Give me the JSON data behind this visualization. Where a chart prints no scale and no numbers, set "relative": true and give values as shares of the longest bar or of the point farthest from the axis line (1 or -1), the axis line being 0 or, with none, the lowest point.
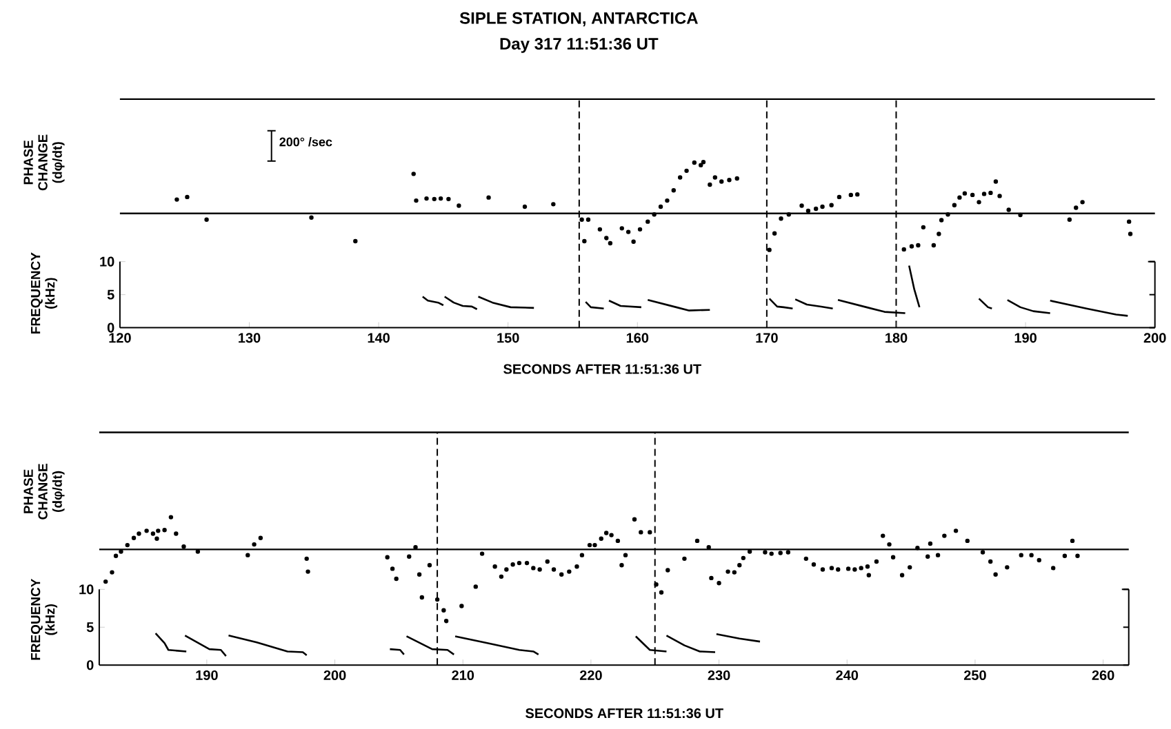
{
  "chart_data": [
    {
      "type": "scatter",
      "title": "SIPLE STATION, ANTARCTICA",
      "subtitle": "Day 317 11:51:36 UT",
      "ylabel": "PHASE CHANGE (dφ/dt)",
      "relative": true,
      "xlim": [
        120,
        200
      ],
      "annotations": [
        "200° /sec"
      ],
      "ref_lines": [
        {
          "axis": "x",
          "value": 155.5,
          "line_style": "dashed"
        },
        {
          "axis": "x",
          "value": 170,
          "line_style": "dashed"
        },
        {
          "axis": "x",
          "value": 180,
          "line_style": "dashed"
        }
      ],
      "series": [
        {
          "color": "#000000",
          "x": [
            124.4,
            125.2,
            126.7,
            134.8,
            138.2,
            142.7,
            142.9,
            143.7,
            144.3,
            144.8,
            145.4,
            146.2,
            148.5,
            151.3,
            153.5,
            155.7,
            155.9,
            156.2,
            157.1,
            157.6,
            157.9,
            158.8,
            159.3,
            159.7,
            160.2,
            160.8,
            161.3,
            161.8,
            162.3,
            162.8,
            163.3,
            163.8,
            164.4,
            164.9,
            165.1,
            165.6,
            166.0,
            166.5,
            167.1,
            167.7,
            170.2,
            170.6,
            171.1,
            171.7,
            172.7,
            173.2,
            173.8,
            174.3,
            175.0,
            175.6,
            176.5,
            177.0,
            180.6,
            181.2,
            181.7,
            182.1,
            182.9,
            183.3,
            183.5,
            184.0,
            184.5,
            184.9,
            185.3,
            185.9,
            186.4,
            186.8,
            187.3,
            187.7,
            188.0,
            188.7,
            189.6,
            193.4,
            193.9,
            194.4,
            198.0,
            198.1
          ],
          "values": [
            0.27,
            0.32,
            -0.12,
            -0.08,
            -0.54,
            0.77,
            0.25,
            0.29,
            0.28,
            0.29,
            0.28,
            0.15,
            0.31,
            0.13,
            0.18,
            -0.12,
            -0.54,
            -0.12,
            -0.31,
            -0.48,
            -0.58,
            -0.29,
            -0.36,
            -0.55,
            -0.31,
            -0.16,
            -0.02,
            0.13,
            0.25,
            0.45,
            0.7,
            0.83,
            0.99,
            0.94,
            1,
            0.56,
            0.7,
            0.62,
            0.65,
            0.68,
            -0.71,
            -0.39,
            -0.1,
            -0.02,
            0.15,
            0.05,
            0.09,
            0.13,
            0.16,
            0.32,
            0.36,
            0.37,
            -0.7,
            -0.64,
            -0.62,
            -0.27,
            -0.62,
            -0.4,
            -0.13,
            -0.02,
            0.16,
            0.31,
            0.39,
            0.36,
            0.22,
            0.38,
            0.4,
            0.62,
            0.34,
            0.07,
            -0.03,
            -0.12,
            0.11,
            0.22,
            -0.16,
            -0.4
          ]
        }
      ]
    },
    {
      "type": "line",
      "xlabel": "SECONDS AFTER 11:51:36 UT",
      "ylabel": "FREQUENCY (kHz)",
      "xlim": [
        120,
        200
      ],
      "ylim": [
        0,
        10
      ],
      "xticks": [
        120,
        130,
        140,
        150,
        160,
        170,
        180,
        190,
        200
      ],
      "yticks": [
        0,
        5,
        10
      ],
      "series": [
        {
          "color": "#000000",
          "x": [
            143.4,
            143.8,
            144.6,
            145.0
          ],
          "values": [
            4.7,
            4.1,
            3.8,
            3.4
          ]
        },
        {
          "color": "#000000",
          "x": [
            145.1,
            145.8,
            146.5,
            147.2,
            147.6
          ],
          "values": [
            4.7,
            3.8,
            3.3,
            3.2,
            2.8
          ]
        },
        {
          "color": "#000000",
          "x": [
            147.7,
            148.8,
            150.2,
            152.0
          ],
          "values": [
            4.7,
            3.8,
            3.1,
            3.0
          ]
        },
        {
          "color": "#000000",
          "x": [
            156.0,
            156.4,
            157.4
          ],
          "values": [
            3.9,
            3.1,
            2.9
          ]
        },
        {
          "color": "#000000",
          "x": [
            157.8,
            158.7,
            160.3
          ],
          "values": [
            4.1,
            3.3,
            3.1
          ]
        },
        {
          "color": "#000000",
          "x": [
            160.8,
            163.0,
            164.0,
            165.6
          ],
          "values": [
            4.2,
            3.1,
            2.6,
            2.7
          ]
        },
        {
          "color": "#000000",
          "x": [
            170.2,
            170.8,
            171.3,
            172.0
          ],
          "values": [
            4.4,
            3.2,
            3.1,
            2.9
          ]
        },
        {
          "color": "#000000",
          "x": [
            172.2,
            173.1,
            174.2,
            175.1
          ],
          "values": [
            4.3,
            3.5,
            3.2,
            2.9
          ]
        },
        {
          "color": "#000000",
          "x": [
            175.5,
            177.7,
            179.1,
            180.7
          ],
          "values": [
            4.2,
            3.1,
            2.4,
            2.2
          ]
        },
        {
          "color": "#000000",
          "x": [
            181.0,
            181.4,
            181.8
          ],
          "values": [
            9.4,
            5.8,
            3.1
          ]
        },
        {
          "color": "#000000",
          "x": [
            186.4,
            187.1,
            187.4
          ],
          "values": [
            4.4,
            3.1,
            2.9
          ]
        },
        {
          "color": "#000000",
          "x": [
            188.6,
            189.6,
            190.6,
            191.9
          ],
          "values": [
            4.2,
            3.1,
            2.5,
            2.2
          ]
        },
        {
          "color": "#000000",
          "x": [
            191.9,
            194.7,
            197.0,
            197.9
          ],
          "values": [
            4.1,
            2.9,
            2.0,
            1.8
          ]
        }
      ]
    },
    {
      "type": "scatter",
      "ylabel": "PHASE CHANGE (dφ/dt)",
      "relative": true,
      "xlim": [
        181.6,
        262
      ],
      "ref_lines": [
        {
          "axis": "x",
          "value": 208,
          "line_style": "dashed"
        },
        {
          "axis": "x",
          "value": 225,
          "line_style": "dashed"
        }
      ],
      "series": [
        {
          "color": "#000000",
          "x": [
            182.1,
            182.6,
            182.9,
            183.3,
            183.8,
            184.3,
            184.7,
            185.3,
            185.8,
            186.1,
            186.2,
            186.7,
            187.2,
            187.6,
            188.2,
            189.3,
            193.2,
            193.7,
            194.2,
            197.8,
            197.9,
            204.1,
            204.5,
            204.8,
            205.8,
            206.3,
            206.6,
            206.8,
            207.4,
            208.0,
            208.5,
            208.7,
            209.9,
            211.0,
            211.5,
            212.5,
            213.0,
            213.4,
            213.9,
            214.4,
            215.0,
            215.5,
            216.0,
            216.6,
            217.1,
            217.7,
            218.3,
            218.9,
            219.3,
            219.9,
            220.3,
            220.8,
            221.2,
            221.6,
            222.1,
            222.4,
            222.7,
            223.4,
            223.9,
            224.6,
            225.1,
            225.5,
            226.0,
            227.3,
            228.3,
            229.2,
            229.4,
            230.0,
            230.7,
            231.2,
            231.6,
            231.9,
            232.4,
            233.6,
            234.1,
            234.8,
            235.4,
            236.8,
            237.4,
            238.1,
            238.8,
            239.3,
            240.1,
            240.6,
            241.1,
            241.6,
            241.7,
            242.3,
            242.8,
            243.3,
            243.6,
            244.3,
            244.9,
            245.5,
            246.3,
            246.5,
            247.1,
            247.6,
            248.5,
            249.4,
            250.6,
            251.2,
            251.6,
            252.5,
            253.6,
            254.4,
            255.0,
            256.1,
            257.0,
            257.6,
            258.0
          ],
          "values": [
            -0.45,
            -0.32,
            -0.09,
            -0.03,
            0.06,
            0.16,
            0.22,
            0.26,
            0.22,
            0.15,
            0.26,
            0.27,
            0.45,
            0.22,
            0.04,
            -0.03,
            -0.08,
            0.07,
            0.16,
            -0.13,
            -0.31,
            -0.11,
            -0.27,
            -0.41,
            -0.1,
            0.03,
            -0.35,
            -0.67,
            -0.22,
            -0.7,
            -0.85,
            -1,
            -0.79,
            -0.52,
            -0.06,
            -0.24,
            -0.38,
            -0.28,
            -0.21,
            -0.19,
            -0.19,
            -0.26,
            -0.28,
            -0.17,
            -0.28,
            -0.35,
            -0.31,
            -0.24,
            -0.08,
            0.06,
            0.06,
            0.15,
            0.23,
            0.2,
            0.12,
            -0.22,
            -0.08,
            0.42,
            0.24,
            0.24,
            -0.49,
            -0.6,
            -0.29,
            -0.13,
            0.12,
            0.03,
            -0.4,
            -0.47,
            -0.31,
            -0.32,
            -0.22,
            -0.12,
            -0.03,
            -0.04,
            -0.06,
            -0.05,
            -0.04,
            -0.13,
            -0.21,
            -0.28,
            -0.26,
            -0.28,
            -0.27,
            -0.28,
            -0.26,
            -0.24,
            -0.36,
            -0.17,
            0.19,
            0.07,
            -0.11,
            -0.36,
            -0.25,
            0.02,
            -0.1,
            0.08,
            -0.08,
            0.19,
            0.26,
            0.12,
            -0.04,
            -0.17,
            -0.35,
            -0.25,
            -0.08,
            -0.08,
            -0.15,
            -0.26,
            -0.09,
            0.12,
            -0.09
          ]
        }
      ]
    },
    {
      "type": "line",
      "xlabel": "SECONDS AFTER 11:51:36 UT",
      "ylabel": "FREQUENCY (kHz)",
      "xlim": [
        181.6,
        262
      ],
      "ylim": [
        0,
        10
      ],
      "xticks": [
        190,
        200,
        210,
        220,
        230,
        240,
        250,
        260
      ],
      "yticks": [
        0,
        5,
        10
      ],
      "series": [
        {
          "color": "#000000",
          "x": [
            186.0,
            186.7,
            187.0,
            188.4
          ],
          "values": [
            4.2,
            2.9,
            2.0,
            1.8
          ]
        },
        {
          "color": "#000000",
          "x": [
            188.3,
            190.2,
            191.1,
            191.5
          ],
          "values": [
            3.9,
            2.1,
            2.0,
            1.2
          ]
        },
        {
          "color": "#000000",
          "x": [
            191.7,
            193.9,
            196.3,
            197.5,
            197.8
          ],
          "values": [
            3.9,
            3.0,
            1.8,
            1.7,
            1.3
          ]
        },
        {
          "color": "#000000",
          "x": [
            204.3,
            205.1,
            205.4
          ],
          "values": [
            2.1,
            2.0,
            1.4
          ]
        },
        {
          "color": "#000000",
          "x": [
            205.6,
            207.6,
            208.8,
            209.3
          ],
          "values": [
            3.8,
            2.1,
            2.0,
            1.4
          ]
        },
        {
          "color": "#000000",
          "x": [
            209.4,
            211.9,
            214.4,
            215.5,
            215.9
          ],
          "values": [
            3.8,
            2.9,
            2.0,
            1.8,
            1.4
          ]
        },
        {
          "color": "#000000",
          "x": [
            223.5,
            224.6,
            225.9
          ],
          "values": [
            3.8,
            2.0,
            1.8
          ]
        },
        {
          "color": "#000000",
          "x": [
            225.9,
            227.3,
            228.5,
            229.7
          ],
          "values": [
            3.9,
            2.6,
            1.8,
            1.7
          ]
        },
        {
          "color": "#000000",
          "x": [
            229.8,
            231.6,
            233.2
          ],
          "values": [
            4.1,
            3.5,
            3.1
          ]
        }
      ]
    }
  ]
}
